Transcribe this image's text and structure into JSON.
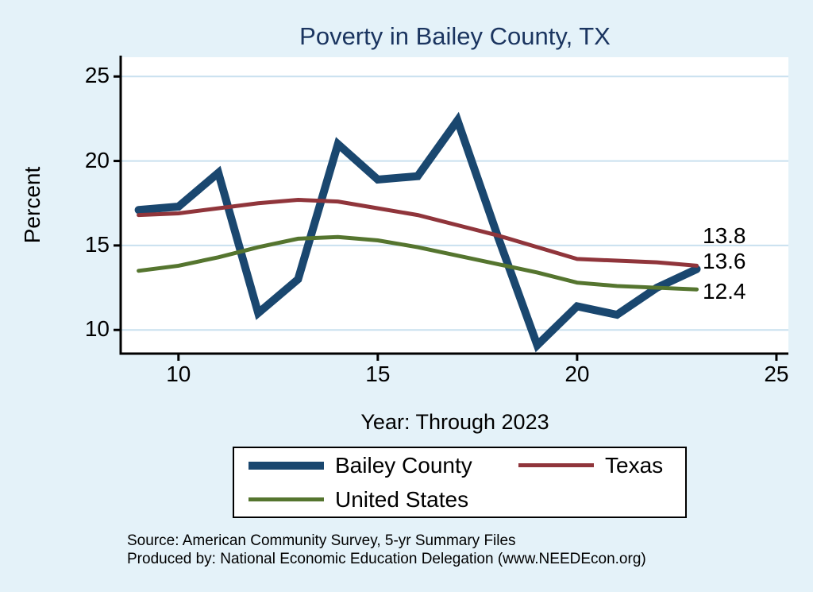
{
  "title": "Poverty in Bailey County, TX",
  "axes": {
    "ylabel": "Percent",
    "xlabel": "Year: Through 2023"
  },
  "end_labels": {
    "texas": "13.8",
    "bailey": "13.6",
    "us": "12.4"
  },
  "legend": {
    "items": [
      {
        "label": "Bailey County",
        "color": "#1a476f",
        "thickness": 10
      },
      {
        "label": "Texas",
        "color": "#90353b",
        "thickness": 5
      },
      {
        "label": "United States",
        "color": "#55752f",
        "thickness": 5
      }
    ]
  },
  "source": {
    "line1": "Source: American Community Survey, 5-yr Summary Files",
    "line2": "Produced by: National Economic Education Delegation (www.NEEDEcon.org)"
  },
  "colors": {
    "background": "#e4f2f9",
    "plot_bg": "#ffffff",
    "grid": "#c9e0ef",
    "axis": "#000000",
    "title": "#1b3560"
  },
  "chart_data": {
    "type": "line",
    "title": "Poverty in Bailey County, TX",
    "xlabel": "Year: Through 2023",
    "ylabel": "Percent",
    "x": [
      9,
      10,
      11,
      12,
      13,
      14,
      15,
      16,
      17,
      18,
      19,
      20,
      21,
      22,
      23
    ],
    "series": [
      {
        "name": "Bailey County",
        "color": "#1a476f",
        "width": 10,
        "values": [
          17.1,
          17.3,
          19.3,
          11.0,
          13.0,
          21.0,
          18.9,
          19.1,
          22.4,
          15.6,
          9.1,
          11.4,
          10.9,
          12.5,
          13.6
        ],
        "end_label": "13.6"
      },
      {
        "name": "Texas",
        "color": "#90353b",
        "width": 5,
        "values": [
          16.8,
          16.9,
          17.2,
          17.5,
          17.7,
          17.6,
          17.2,
          16.8,
          16.2,
          15.6,
          14.9,
          14.2,
          14.1,
          14.0,
          13.8
        ],
        "end_label": "13.8"
      },
      {
        "name": "United States",
        "color": "#55752f",
        "width": 5,
        "values": [
          13.5,
          13.8,
          14.3,
          14.9,
          15.4,
          15.5,
          15.3,
          14.9,
          14.4,
          13.9,
          13.4,
          12.8,
          12.6,
          12.5,
          12.4
        ],
        "end_label": "12.4"
      }
    ],
    "x_ticks": [
      10,
      15,
      20,
      25
    ],
    "y_ticks": [
      10,
      15,
      20,
      25
    ],
    "xlim": [
      8.55,
      25.3
    ],
    "ylim": [
      8.6,
      26.14
    ],
    "grid": "horizontal-only",
    "legend_position": "below"
  }
}
